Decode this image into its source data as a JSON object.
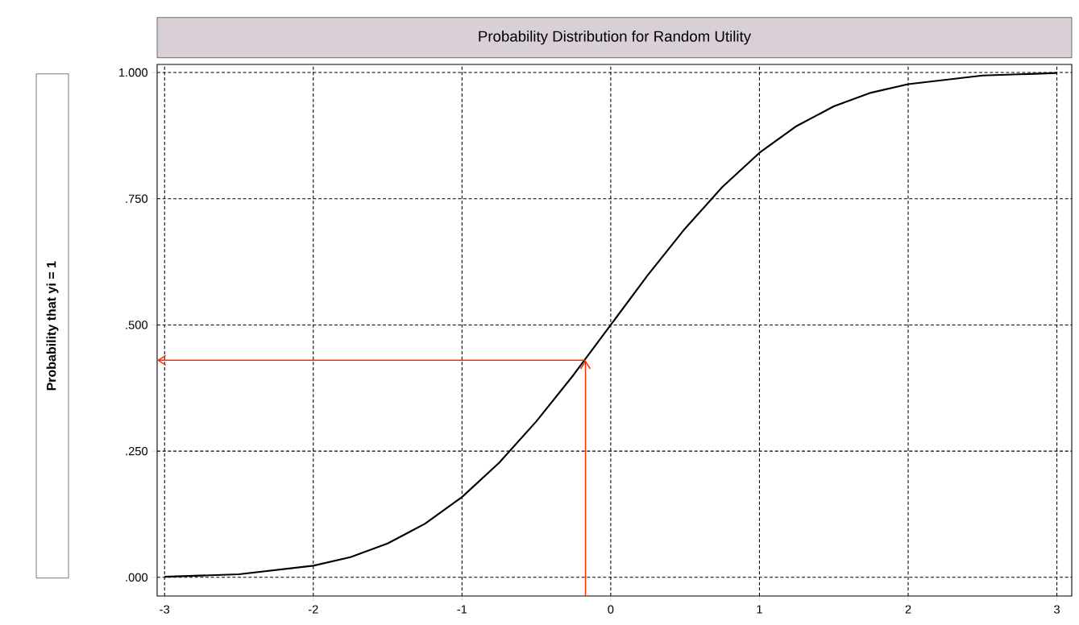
{
  "chart_data": {
    "type": "line",
    "title": "Probability Distribution for Random Utility",
    "ylabel": "Probability that yi = 1",
    "xlim": [
      -3.05,
      3.1
    ],
    "ylim": [
      -0.037,
      1.016
    ],
    "xticks": [
      -3,
      -2,
      -1,
      0,
      1,
      2,
      3
    ],
    "yticks": [
      {
        "value": 0,
        "label": ".000"
      },
      {
        "value": 0.25,
        "label": ".250"
      },
      {
        "value": 0.5,
        "label": ".500"
      },
      {
        "value": 0.75,
        "label": ".750"
      },
      {
        "value": 1,
        "label": "1.000"
      }
    ],
    "grid": true,
    "line_style": "solid",
    "ref_lines": [
      {
        "axis": "x",
        "value": -0.17,
        "color": "#ff2a00"
      },
      {
        "axis": "y",
        "value": 0.43,
        "color": "#ff2a00"
      }
    ],
    "series": [
      {
        "color": "#000000",
        "x": [
          -3,
          -2.5,
          -2,
          -1.75,
          -1.5,
          -1.25,
          -1,
          -0.75,
          -0.5,
          -0.25,
          0,
          0.25,
          0.5,
          0.75,
          1,
          1.25,
          1.5,
          1.75,
          2,
          2.5,
          3
        ],
        "values": [
          0.001,
          0.006,
          0.023,
          0.04,
          0.067,
          0.106,
          0.159,
          0.227,
          0.309,
          0.401,
          0.5,
          0.599,
          0.691,
          0.773,
          0.841,
          0.894,
          0.933,
          0.96,
          0.977,
          0.994,
          0.999
        ]
      }
    ]
  }
}
